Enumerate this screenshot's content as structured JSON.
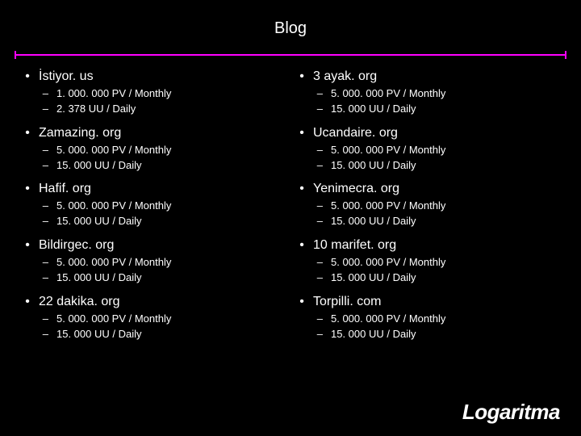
{
  "title": "Blog",
  "divider_color": "#ff00ff",
  "background_color": "#000000",
  "text_color": "#ffffff",
  "logo": "Logaritma",
  "left_sites": [
    {
      "name": "İstiyor. us",
      "metrics": [
        "1. 000. 000 PV / Monthly",
        "2. 378 UU / Daily"
      ]
    },
    {
      "name": "Zamazing. org",
      "metrics": [
        "5. 000. 000 PV / Monthly",
        "15. 000 UU / Daily"
      ]
    },
    {
      "name": "Hafif. org",
      "metrics": [
        "5. 000. 000 PV / Monthly",
        "15. 000 UU / Daily"
      ]
    },
    {
      "name": "Bildirgec. org",
      "metrics": [
        "5. 000. 000 PV / Monthly",
        "15. 000 UU / Daily"
      ]
    },
    {
      "name": "22 dakika. org",
      "metrics": [
        "5. 000. 000 PV / Monthly",
        "15. 000 UU / Daily"
      ]
    }
  ],
  "right_sites": [
    {
      "name": "3 ayak. org",
      "metrics": [
        "5. 000. 000 PV / Monthly",
        "15. 000 UU / Daily"
      ]
    },
    {
      "name": "Ucandaire. org",
      "metrics": [
        "5. 000. 000 PV / Monthly",
        "15. 000 UU / Daily"
      ]
    },
    {
      "name": "Yenimecra. org",
      "metrics": [
        "5. 000. 000 PV / Monthly",
        "15. 000 UU / Daily"
      ]
    },
    {
      "name": "10 marifet. org",
      "metrics": [
        "5. 000. 000 PV / Monthly",
        "15. 000 UU / Daily"
      ]
    },
    {
      "name": "Torpilli. com",
      "metrics": [
        "5. 000. 000 PV / Monthly",
        "15. 000 UU / Daily"
      ]
    }
  ]
}
